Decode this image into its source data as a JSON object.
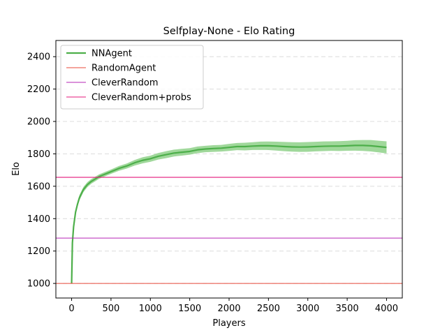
{
  "chart_data": {
    "type": "line",
    "title": "Selfplay-None - Elo Rating",
    "xlabel": "Players",
    "ylabel": "Elo",
    "xlim": [
      -200,
      4200
    ],
    "ylim": [
      910,
      2500
    ],
    "xticks": [
      0,
      500,
      1000,
      1500,
      2000,
      2500,
      3000,
      3500,
      4000
    ],
    "yticks": [
      1000,
      1200,
      1400,
      1600,
      1800,
      2000,
      2200,
      2400
    ],
    "grid": "horizontal dashed",
    "legend_position": "top-left",
    "series": [
      {
        "name": "NNAgent",
        "kind": "line-with-band",
        "color": "#4daf4a",
        "band_color": "#8fd18a",
        "x": [
          0,
          10,
          25,
          50,
          75,
          100,
          150,
          200,
          250,
          300,
          350,
          400,
          500,
          600,
          700,
          800,
          900,
          1000,
          1100,
          1200,
          1300,
          1400,
          1500,
          1600,
          1700,
          1800,
          1900,
          2000,
          2100,
          2200,
          2300,
          2400,
          2500,
          2600,
          2700,
          2800,
          2900,
          3000,
          3100,
          3200,
          3300,
          3400,
          3500,
          3600,
          3700,
          3800,
          3900,
          4000
        ],
        "y": [
          1000,
          1250,
          1350,
          1440,
          1490,
          1530,
          1580,
          1610,
          1630,
          1645,
          1660,
          1670,
          1690,
          1710,
          1725,
          1745,
          1760,
          1770,
          1785,
          1795,
          1805,
          1810,
          1815,
          1825,
          1830,
          1833,
          1835,
          1840,
          1845,
          1845,
          1848,
          1850,
          1850,
          1848,
          1845,
          1843,
          1842,
          1843,
          1845,
          1847,
          1848,
          1848,
          1850,
          1852,
          1852,
          1850,
          1845,
          1840
        ],
        "band": [
          0,
          10,
          12,
          15,
          15,
          15,
          15,
          15,
          15,
          15,
          15,
          15,
          15,
          16,
          16,
          17,
          18,
          18,
          19,
          20,
          20,
          20,
          20,
          21,
          21,
          22,
          22,
          23,
          23,
          24,
          24,
          25,
          25,
          26,
          27,
          28,
          29,
          30,
          30,
          31,
          31,
          32,
          32,
          33,
          34,
          35,
          35,
          36
        ]
      },
      {
        "name": "RandomAgent",
        "kind": "hline",
        "value": 1000,
        "color": "#e8493a"
      },
      {
        "name": "CleverRandom",
        "kind": "hline",
        "value": 1280,
        "color": "#b624b6"
      },
      {
        "name": "CleverRandom+probs",
        "kind": "hline",
        "value": 1655,
        "color": "#e4187b"
      }
    ]
  }
}
